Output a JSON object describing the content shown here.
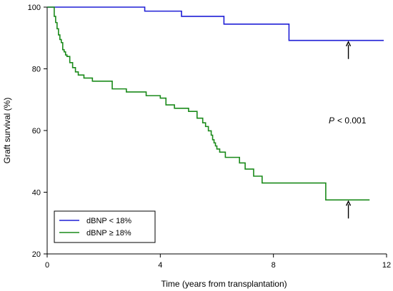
{
  "chart_data": {
    "type": "line",
    "xlabel": "Time (years from transplantation)",
    "ylabel": "Graft survival (%)",
    "xlim": [
      0,
      12
    ],
    "ylim": [
      20,
      100
    ],
    "x_ticks": [
      "0",
      "4",
      "8",
      "12"
    ],
    "y_ticks": [
      "20",
      "40",
      "60",
      "80",
      "100"
    ],
    "grid": false,
    "legend_position": "bottom-left",
    "annotation": {
      "p_label": "P",
      "p_value": "< 0.001"
    },
    "series": [
      {
        "name": "dBNP < 18%",
        "color": "#1f1fd6",
        "step": true,
        "x": [
          0,
          3.45,
          3.45,
          4.75,
          4.75,
          6.25,
          6.25,
          8.55,
          8.55,
          11.9
        ],
        "y": [
          100,
          100,
          98.7,
          98.7,
          97.0,
          97.0,
          94.5,
          94.5,
          89.2,
          89.2
        ]
      },
      {
        "name": "dBNP ≥ 18%",
        "color": "#1a8a1a",
        "step": true,
        "x": [
          0,
          0.25,
          0.3,
          0.35,
          0.4,
          0.45,
          0.5,
          0.55,
          0.6,
          0.65,
          0.7,
          0.8,
          0.9,
          1.0,
          1.1,
          1.3,
          1.6,
          2.3,
          2.8,
          3.5,
          4.0,
          4.2,
          4.5,
          5.0,
          5.3,
          5.5,
          5.6,
          5.7,
          5.8,
          5.85,
          5.9,
          5.95,
          6.0,
          6.1,
          6.3,
          6.8,
          7.0,
          7.3,
          7.6,
          9.85,
          11.4
        ],
        "y": [
          100,
          97,
          95,
          93,
          91,
          89.5,
          88.5,
          86.2,
          85.5,
          84.5,
          84.0,
          82.0,
          80.4,
          79.0,
          78.0,
          77.0,
          76.0,
          73.5,
          72.5,
          71.3,
          70.5,
          68.3,
          67.2,
          66.2,
          64.0,
          62.5,
          61.3,
          59.9,
          58.5,
          57.0,
          56.0,
          55.0,
          54.0,
          53.0,
          51.3,
          49.5,
          47.5,
          45.2,
          43.0,
          37.5,
          37.5
        ]
      }
    ],
    "arrows": [
      {
        "series": "dBNP < 18%",
        "x": 10.65
      },
      {
        "series": "dBNP ≥ 18%",
        "x": 10.65
      }
    ]
  }
}
